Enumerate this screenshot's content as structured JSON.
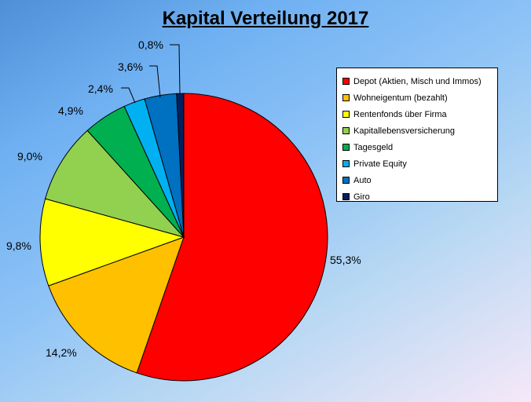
{
  "chart_data": {
    "type": "pie",
    "title": "Kapital Verteilung 2017",
    "slices": [
      {
        "label": "Depot (Aktien, Misch und Immos)",
        "value": 55.3,
        "display": "55,3%",
        "color": "#ff0000"
      },
      {
        "label": "Wohneigentum (bezahlt)",
        "value": 14.2,
        "display": "14,2%",
        "color": "#ffc000"
      },
      {
        "label": "Rentenfonds über Firma",
        "value": 9.8,
        "display": "9,8%",
        "color": "#ffff00"
      },
      {
        "label": "Kapitallebensversicherung",
        "value": 9.0,
        "display": "9,0%",
        "color": "#92d050"
      },
      {
        "label": "Tagesgeld",
        "value": 4.9,
        "display": "4,9%",
        "color": "#00b050"
      },
      {
        "label": "Private Equity",
        "value": 2.4,
        "display": "2,4%",
        "color": "#00b0f0"
      },
      {
        "label": "Auto",
        "value": 3.6,
        "display": "3,6%",
        "color": "#0070c0"
      },
      {
        "label": "Giro",
        "value": 0.8,
        "display": "0,8%",
        "color": "#002060"
      }
    ],
    "legend_position": "right"
  }
}
